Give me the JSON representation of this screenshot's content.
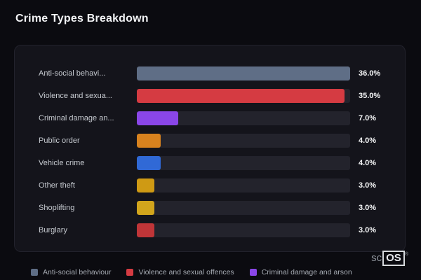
{
  "page": {
    "title": "Crime Types Breakdown"
  },
  "chart_data": {
    "type": "bar",
    "orientation": "horizontal",
    "title": "Crime Types Breakdown",
    "categories": [
      "Anti-social behaviour",
      "Violence and sexual offences",
      "Criminal damage and arson",
      "Public order",
      "Vehicle crime",
      "Other theft",
      "Shoplifting",
      "Burglary"
    ],
    "display_labels": [
      "Anti-social behavi...",
      "Violence and sexua...",
      "Criminal damage an...",
      "Public order",
      "Vehicle crime",
      "Other theft",
      "Shoplifting",
      "Burglary"
    ],
    "values": [
      36.0,
      35.0,
      7.0,
      4.0,
      4.0,
      3.0,
      3.0,
      3.0
    ],
    "value_labels": [
      "36.0%",
      "35.0%",
      "7.0%",
      "4.0%",
      "4.0%",
      "3.0%",
      "3.0%",
      "3.0%"
    ],
    "colors": [
      "#5f6e86",
      "#d53b42",
      "#8a46e8",
      "#d8821e",
      "#3069d6",
      "#cf9a14",
      "#d2a51c",
      "#c03538"
    ],
    "xlim": [
      0,
      36
    ],
    "track_color": "#23232c",
    "legend_position": "bottom"
  },
  "legend": {
    "items": [
      {
        "label": "Anti-social behaviour",
        "color": "#5f6e86"
      },
      {
        "label": "Violence and sexual offences",
        "color": "#d53b42"
      },
      {
        "label": "Criminal damage and arson",
        "color": "#8a46e8"
      }
    ]
  },
  "branding": {
    "logo_text_light": "sc",
    "logo_text_box": "OS",
    "registered": "®"
  }
}
